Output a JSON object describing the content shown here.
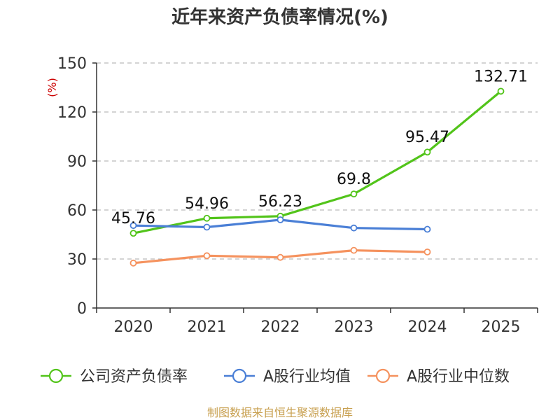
{
  "chart_data": {
    "type": "line",
    "title": "近年来资产负债率情况(%)",
    "ylabel": "(%)",
    "categories": [
      "2020",
      "2021",
      "2022",
      "2023",
      "2024",
      "2025"
    ],
    "ylim": [
      0,
      150
    ],
    "yticks": [
      "0",
      "30",
      "60",
      "90",
      "120",
      "150"
    ],
    "grid": true,
    "legend_position": "bottom",
    "series": [
      {
        "name": "公司资产负债率",
        "color": "#52c41a",
        "values": [
          45.76,
          54.96,
          56.23,
          69.8,
          95.47,
          132.71
        ],
        "labels": [
          "45.76",
          "54.96",
          "56.23",
          "69.8",
          "95.47",
          "132.71"
        ]
      },
      {
        "name": "A股行业均值",
        "color": "#4a7fd6",
        "values": [
          50.5,
          49.5,
          54.0,
          49.0,
          48.2,
          null
        ],
        "labels": []
      },
      {
        "name": "A股行业中位数",
        "color": "#f5925e",
        "values": [
          27.5,
          32.0,
          31.0,
          35.3,
          34.3,
          null
        ],
        "labels": []
      }
    ]
  },
  "footer": {
    "source": "制图数据来自恒生聚源数据库"
  }
}
